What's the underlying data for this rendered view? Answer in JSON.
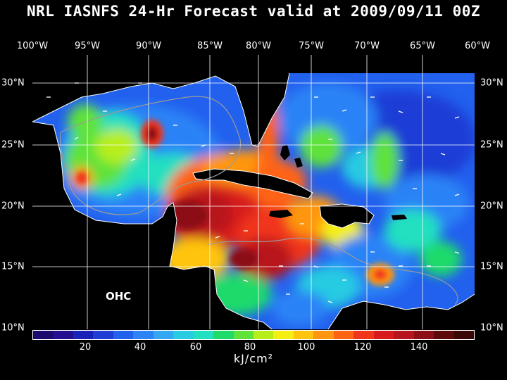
{
  "title": "NRL IASNFS  24-Hr Forecast valid at 2009/09/11 00Z",
  "map_label": "OHC",
  "units": "kJ/cm²",
  "lon_labels": [
    "100°W",
    "95°W",
    "90°W",
    "85°W",
    "80°W",
    "75°W",
    "70°W",
    "65°W",
    "60°W"
  ],
  "lat_labels": [
    "30°N",
    "25°N",
    "20°N",
    "15°N",
    "10°N"
  ],
  "colorbar": {
    "min": 0,
    "max": 160,
    "tick_labels": [
      "20",
      "40",
      "60",
      "80",
      "100",
      "120",
      "140"
    ],
    "colors": [
      "#1c0a6e",
      "#24108e",
      "#1a23b8",
      "#1f3ed6",
      "#2260ee",
      "#2c83f6",
      "#34a6f2",
      "#27cbe2",
      "#20e0c0",
      "#1edb6a",
      "#5fe23a",
      "#b7ee1a",
      "#f4ee14",
      "#ffc40e",
      "#ff9610",
      "#ff6412",
      "#f0361a",
      "#d81a1a",
      "#b8141e",
      "#8c0e16",
      "#5c0a0c",
      "#3a0606"
    ]
  }
}
